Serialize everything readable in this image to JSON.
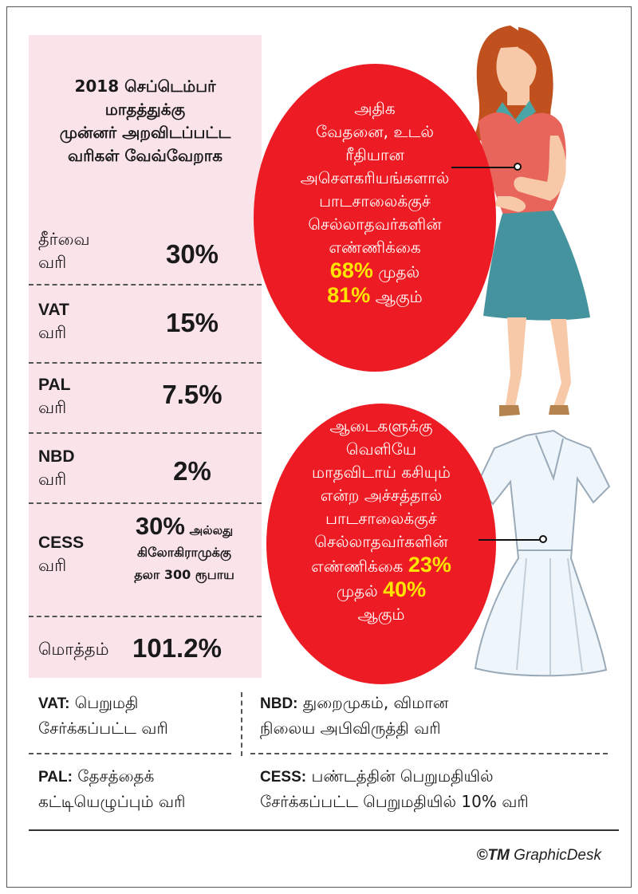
{
  "heading": {
    "line1": "2018 செப்டெம்பர்",
    "line2": "மாதத்துக்கு",
    "line3": "முன்னர் அறவிடப்பட்ட",
    "line4": "வரிகள் வேவ்வேறாக"
  },
  "taxes": [
    {
      "code": "தீர்வை",
      "word": "வரி",
      "value": "30%"
    },
    {
      "code": "VAT",
      "word": "வரி",
      "value": "15%"
    },
    {
      "code": "PAL",
      "word": "வரி",
      "value": "7.5%"
    },
    {
      "code": "NBD",
      "word": "வரி",
      "value": "2%"
    }
  ],
  "cess": {
    "code": "CESS",
    "word": "வரி",
    "value_big": "30%",
    "value_small": "அல்லது",
    "line2": "கிலோகிராமுக்கு",
    "line3": "தலா 300 ரூபாய"
  },
  "total": {
    "label": "மொத்தம்",
    "value": "101.2%"
  },
  "oval_top": {
    "lines": [
      "அதிக",
      "வேதனை, உடல்",
      "ரீதியான",
      "அசௌகரியங்களால்",
      "பாடசாலைக்குச்",
      "செல்லாதவர்களின்",
      "எண்ணிக்கை"
    ],
    "pct1": "68%",
    "word1": "முதல்",
    "pct2": "81%",
    "word2": "ஆகும்"
  },
  "oval_bottom": {
    "lines": [
      "ஆடைகளுக்கு",
      "வெளியே",
      "மாதவிடாய் கசியும்",
      "என்ற அச்சத்தால்",
      "பாடசாலைக்குச்",
      "செல்லாதவர்களின்"
    ],
    "line7_word": "எண்ணிக்கை",
    "pct1": "23%",
    "line8_word": "முதல்",
    "pct2": "40%",
    "line9": "ஆகும்"
  },
  "glossary": {
    "vat_key": "VAT:",
    "vat_l1": "பெறுமதி",
    "vat_l2": "சேர்க்கப்பட்ட வரி",
    "nbd_key": "NBD:",
    "nbd_l1": "துறைமுகம், விமான",
    "nbd_l2": "நிலைய அபிவிருத்தி வரி",
    "pal_key": "PAL:",
    "pal_l1": "தேசத்தைக்",
    "pal_l2": "கட்டியெழுப்பும் வரி",
    "cess_key": "CESS:",
    "cess_l1": "பண்டத்தின் பெறுமதியில்",
    "cess_l2": "சேர்க்கப்பட்ட பெறுமதியில் 10% வரி"
  },
  "credit": {
    "symbol": "©TM",
    "name": "GraphicDesk"
  },
  "colors": {
    "red": "#ed1c24",
    "yellow": "#ffe400",
    "pink": "#fbe3ea"
  }
}
